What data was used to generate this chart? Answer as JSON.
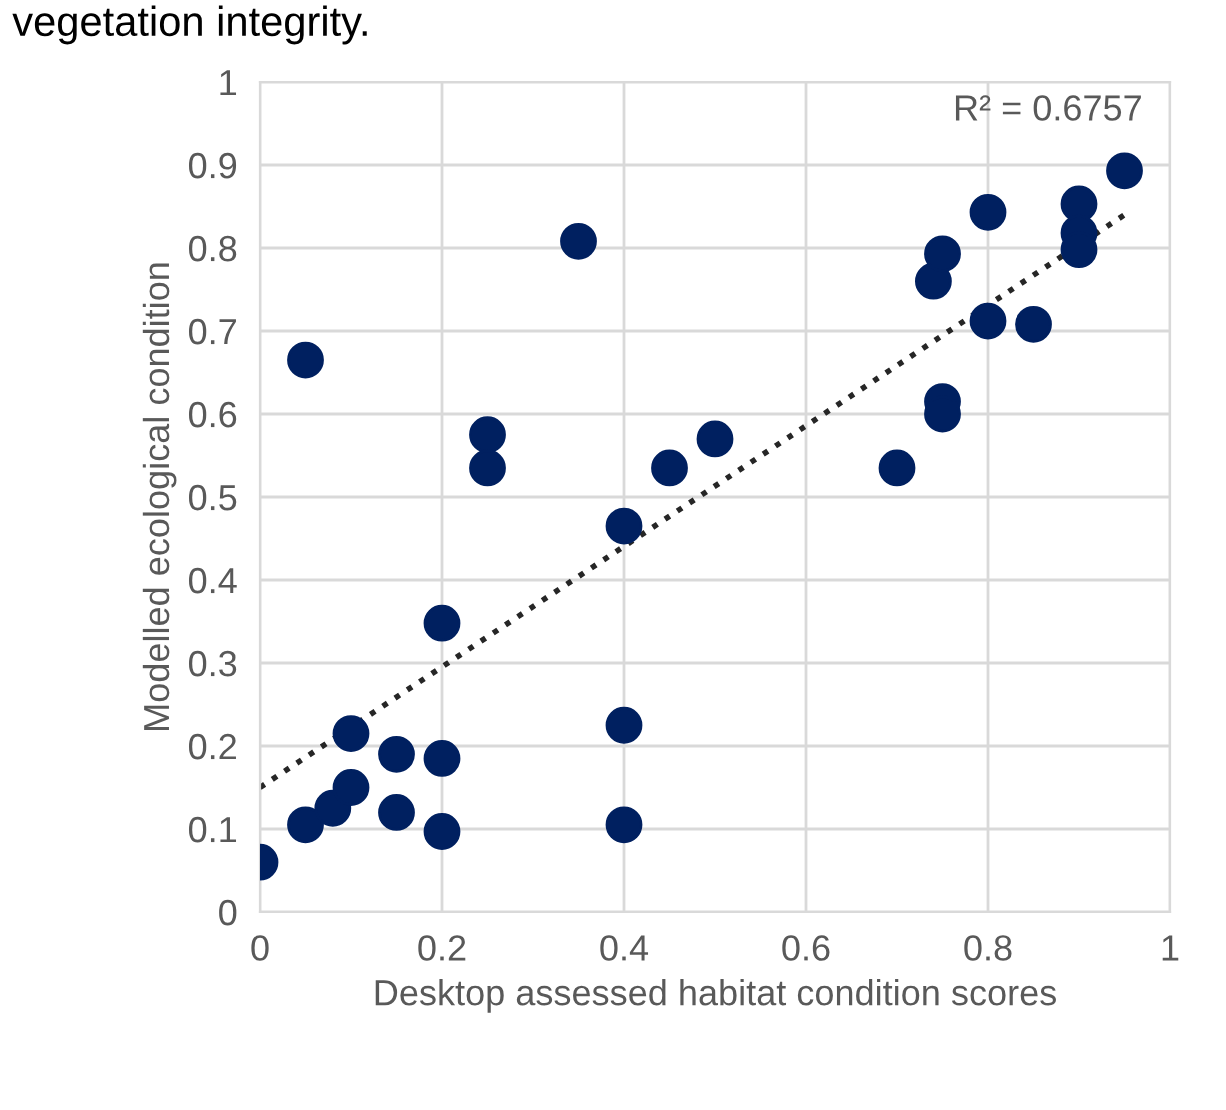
{
  "chart_data": {
    "type": "scatter",
    "xlabel": "Desktop assessed habitat condition scores",
    "ylabel": "Modelled ecological condition",
    "annotations": [
      "vegetation integrity.",
      "R² = 0.6757"
    ],
    "xlim": [
      0,
      1
    ],
    "ylim": [
      0,
      1
    ],
    "xticks": [
      0,
      0.2,
      0.4,
      0.6,
      0.8,
      1
    ],
    "yticks": [
      0,
      0.1,
      0.2,
      0.3,
      0.4,
      0.5,
      0.6,
      0.7,
      0.8,
      0.9,
      1
    ],
    "grid": true,
    "series": [
      {
        "marker": "circle",
        "color": "#002060",
        "x": [
          0,
          0.05,
          0.08,
          0.1,
          0.1,
          0.15,
          0.15,
          0.2,
          0.2,
          0.2,
          0.05,
          0.25,
          0.25,
          0.35,
          0.4,
          0.4,
          0.4,
          0.45,
          0.5,
          0.7,
          0.75,
          0.75,
          0.74,
          0.75,
          0.8,
          0.8,
          0.85,
          0.9,
          0.9,
          0.9,
          0.95
        ],
        "values": [
          0.06,
          0.105,
          0.125,
          0.15,
          0.215,
          0.19,
          0.12,
          0.185,
          0.097,
          0.348,
          0.665,
          0.575,
          0.535,
          0.808,
          0.465,
          0.225,
          0.105,
          0.535,
          0.57,
          0.535,
          0.615,
          0.6,
          0.76,
          0.793,
          0.843,
          0.712,
          0.708,
          0.853,
          0.818,
          0.798,
          0.893
        ]
      },
      {
        "type": "line",
        "color": "#262626",
        "line_style": "dotted",
        "x": [
          0,
          0.95
        ],
        "values": [
          0.15,
          0.84
        ]
      }
    ]
  }
}
